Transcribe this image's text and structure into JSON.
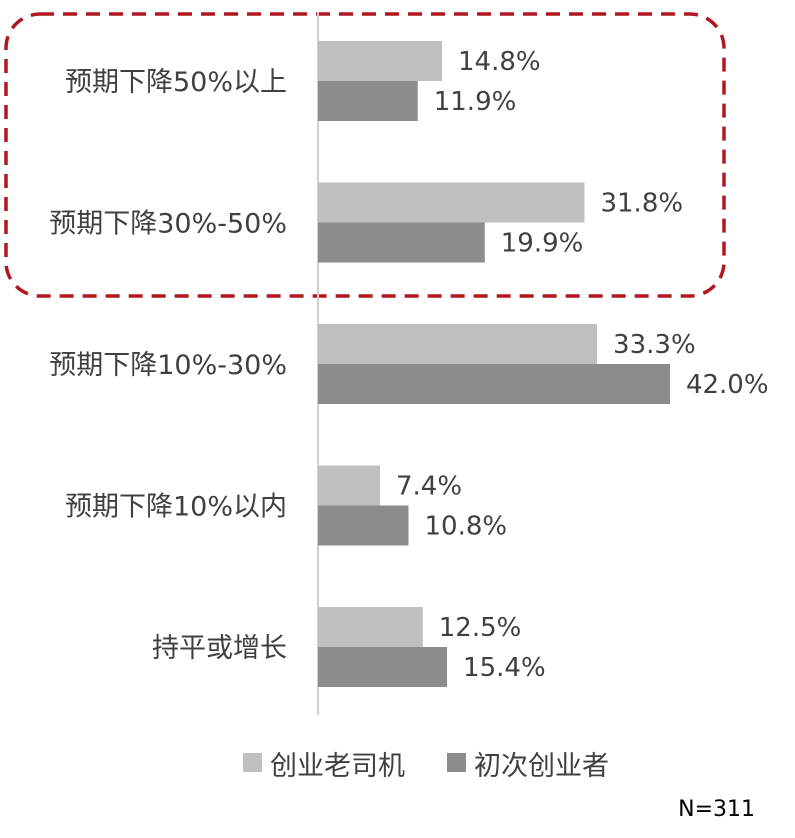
{
  "chart_data": {
    "type": "bar",
    "orientation": "horizontal",
    "categories": [
      "预期下降50%以上",
      "预期下降30%-50%",
      "预期下降10%-30%",
      "预期下降10%以内",
      "持平或增长"
    ],
    "series": [
      {
        "name": "创业老司机",
        "values": [
          14.8,
          31.8,
          33.3,
          7.4,
          12.5
        ],
        "color": "#bfbfbf"
      },
      {
        "name": "初次创业者",
        "values": [
          11.9,
          19.9,
          42.0,
          10.8,
          15.4
        ],
        "color": "#8c8c8c"
      }
    ],
    "value_suffix": "%",
    "xlim": [
      0,
      50
    ],
    "grid": false,
    "legend_position": "bottom",
    "highlight": {
      "categories": [
        "预期下降50%以上",
        "预期下降30%-50%"
      ],
      "style": "dashed rounded box",
      "color": "#b0171f"
    }
  },
  "footnote": "N=311"
}
